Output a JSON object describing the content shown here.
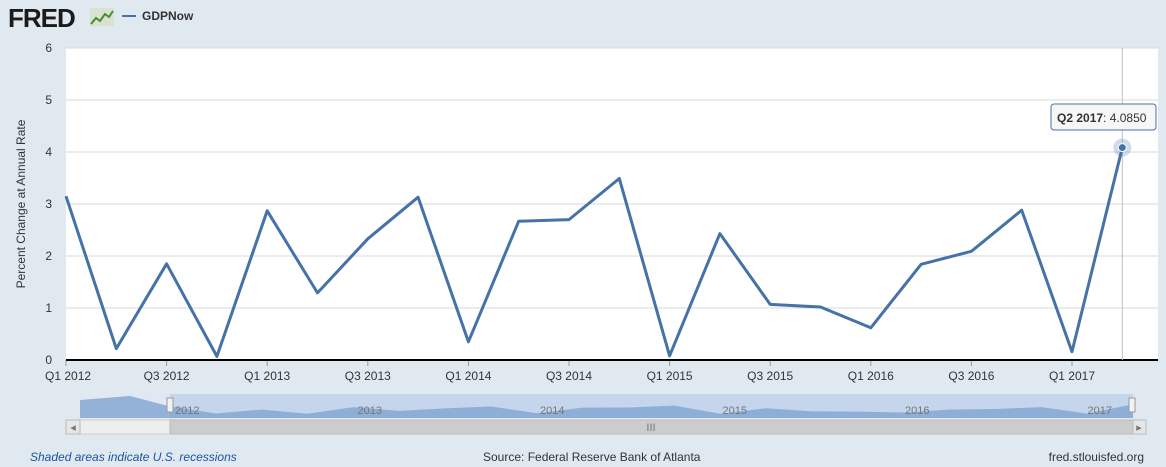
{
  "header": {
    "logo_text": "FRED",
    "series_label": "GDPNow"
  },
  "colors": {
    "line": "#4572a7",
    "background": "#e1e9f0",
    "plot_bg": "#ffffff",
    "navigator_fill": "#b8cde8"
  },
  "chart_data": {
    "type": "line",
    "series": [
      {
        "name": "GDPNow",
        "x": [
          "Q1 2012",
          "Q2 2012",
          "Q3 2012",
          "Q4 2012",
          "Q1 2013",
          "Q2 2013",
          "Q3 2013",
          "Q4 2013",
          "Q1 2014",
          "Q2 2014",
          "Q3 2014",
          "Q4 2014",
          "Q1 2015",
          "Q2 2015",
          "Q3 2015",
          "Q4 2015",
          "Q1 2016",
          "Q2 2016",
          "Q3 2016",
          "Q4 2016",
          "Q1 2017",
          "Q2 2017"
        ],
        "values": [
          3.15,
          0.22,
          1.85,
          0.07,
          2.87,
          1.29,
          2.33,
          3.13,
          0.35,
          2.67,
          2.7,
          3.49,
          0.08,
          2.43,
          1.07,
          1.02,
          0.62,
          1.84,
          2.09,
          2.88,
          0.16,
          4.085
        ]
      }
    ],
    "ylabel": "Percent Change at Annual Rate",
    "ylim": [
      0,
      6
    ],
    "yticks": [
      "0",
      "1",
      "2",
      "3",
      "4",
      "5",
      "6"
    ],
    "xtick_labels": [
      "Q1 2012",
      "Q3 2012",
      "Q1 2013",
      "Q3 2013",
      "Q1 2014",
      "Q3 2014",
      "Q1 2015",
      "Q3 2015",
      "Q1 2016",
      "Q3 2016",
      "Q1 2017"
    ],
    "grid": true,
    "tooltip": {
      "label": "Q2 2017",
      "value": "4.0850"
    },
    "navigator_labels": [
      "2012",
      "2013",
      "2014",
      "2015",
      "2016",
      "2017"
    ]
  },
  "footer": {
    "recession_note": "Shaded areas indicate U.S. recessions",
    "source": "Source: Federal Reserve Bank of Atlanta",
    "site": "fred.stlouisfed.org"
  },
  "scrollbar": {
    "left_arrow": "◂",
    "right_arrow": "▸",
    "grip": "III"
  }
}
